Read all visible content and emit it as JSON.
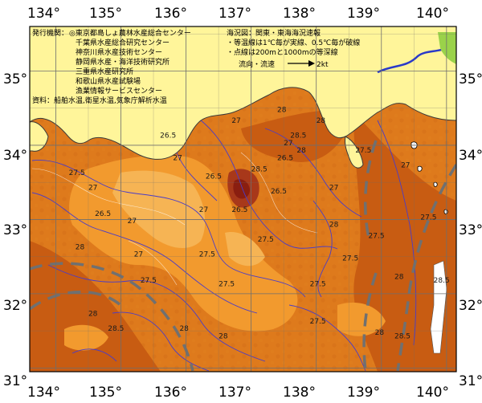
{
  "map": {
    "lon_labels": [
      "134°",
      "135°",
      "136°",
      "137°",
      "138°",
      "139°",
      "140°"
    ],
    "lat_labels": [
      "35°",
      "34°",
      "33°",
      "32°",
      "31°"
    ],
    "lon_range": [
      133.6,
      140.15
    ],
    "lat_range": [
      30.95,
      35.6
    ],
    "colors": {
      "sea_deep": "#c85c12",
      "sea_mid": "#de7a1c",
      "sea_light": "#f29a2e",
      "sea_cool": "#f6b454",
      "land": "#fff59a",
      "contour": "#4a3cc8",
      "grid": "#6e6e6e",
      "dashed_flow": "#707070",
      "hotspot": "#8a1e10"
    },
    "isotherm_labels": [
      {
        "v": "26.5",
        "lon": 135.6,
        "lat": 34.1
      },
      {
        "v": "26.5",
        "lon": 136.3,
        "lat": 33.55
      },
      {
        "v": "26.5",
        "lon": 136.7,
        "lat": 33.1
      },
      {
        "v": "26.5",
        "lon": 137.3,
        "lat": 33.35
      },
      {
        "v": "26.5",
        "lon": 134.6,
        "lat": 33.05
      },
      {
        "v": "26.5",
        "lon": 137.4,
        "lat": 33.8
      },
      {
        "v": "27",
        "lon": 135.8,
        "lat": 33.8
      },
      {
        "v": "27",
        "lon": 134.5,
        "lat": 33.4
      },
      {
        "v": "27",
        "lon": 135.1,
        "lat": 32.95
      },
      {
        "v": "27",
        "lon": 136.2,
        "lat": 33.1
      },
      {
        "v": "27",
        "lon": 136.7,
        "lat": 34.3
      },
      {
        "v": "27",
        "lon": 137.5,
        "lat": 34.0
      },
      {
        "v": "27",
        "lon": 138.2,
        "lat": 33.4
      },
      {
        "v": "27",
        "lon": 139.3,
        "lat": 33.7
      },
      {
        "v": "27",
        "lon": 135.2,
        "lat": 32.5
      },
      {
        "v": "27.5",
        "lon": 134.2,
        "lat": 33.6
      },
      {
        "v": "27.5",
        "lon": 135.3,
        "lat": 32.15
      },
      {
        "v": "27.5",
        "lon": 136.2,
        "lat": 32.5
      },
      {
        "v": "27.5",
        "lon": 136.5,
        "lat": 32.1
      },
      {
        "v": "27.5",
        "lon": 137.1,
        "lat": 32.7
      },
      {
        "v": "27.5",
        "lon": 137.9,
        "lat": 32.1
      },
      {
        "v": "27.5",
        "lon": 138.4,
        "lat": 32.45
      },
      {
        "v": "27.5",
        "lon": 138.6,
        "lat": 33.9
      },
      {
        "v": "27.5",
        "lon": 138.8,
        "lat": 32.75
      },
      {
        "v": "27.5",
        "lon": 139.6,
        "lat": 33.0
      },
      {
        "v": "27.5",
        "lon": 137.9,
        "lat": 31.6
      },
      {
        "v": "28",
        "lon": 134.3,
        "lat": 32.6
      },
      {
        "v": "28",
        "lon": 134.5,
        "lat": 31.7
      },
      {
        "v": "28",
        "lon": 135.9,
        "lat": 31.5
      },
      {
        "v": "28",
        "lon": 136.5,
        "lat": 31.4
      },
      {
        "v": "28",
        "lon": 137.4,
        "lat": 34.45
      },
      {
        "v": "28",
        "lon": 137.7,
        "lat": 33.9
      },
      {
        "v": "28",
        "lon": 138.0,
        "lat": 34.3
      },
      {
        "v": "28",
        "lon": 138.2,
        "lat": 32.9
      },
      {
        "v": "28",
        "lon": 138.9,
        "lat": 31.45
      },
      {
        "v": "28",
        "lon": 139.2,
        "lat": 32.2
      },
      {
        "v": "28.5",
        "lon": 137.0,
        "lat": 33.65
      },
      {
        "v": "28.5",
        "lon": 134.8,
        "lat": 31.5
      },
      {
        "v": "28.5",
        "lon": 139.8,
        "lat": 32.15
      },
      {
        "v": "28.5",
        "lon": 139.2,
        "lat": 31.4
      },
      {
        "v": "28.5",
        "lon": 137.6,
        "lat": 34.1
      }
    ],
    "legend": {
      "issuer_title": "発行機関：",
      "issuer_lines": [
        "◎東京都島しょ農林水産総合センター",
        "千葉県水産総合研究センター",
        "神奈川県水産技術センター",
        "静岡県水産・海洋技術研究所",
        "三重県水産研究所",
        "和歌山県水産試験場",
        "漁業情報サービスセンター"
      ],
      "source": "資料：船舶水温,衛星水温,気象庁解析水温",
      "notes": [
        "海況図：関東・東海海況速報",
        "・等温線は1℃毎が実線、0.5℃毎が破線",
        "・点線は200mと1000mの等深線"
      ],
      "flow_label": "流向・流速",
      "flow_speed": "2kt"
    }
  }
}
